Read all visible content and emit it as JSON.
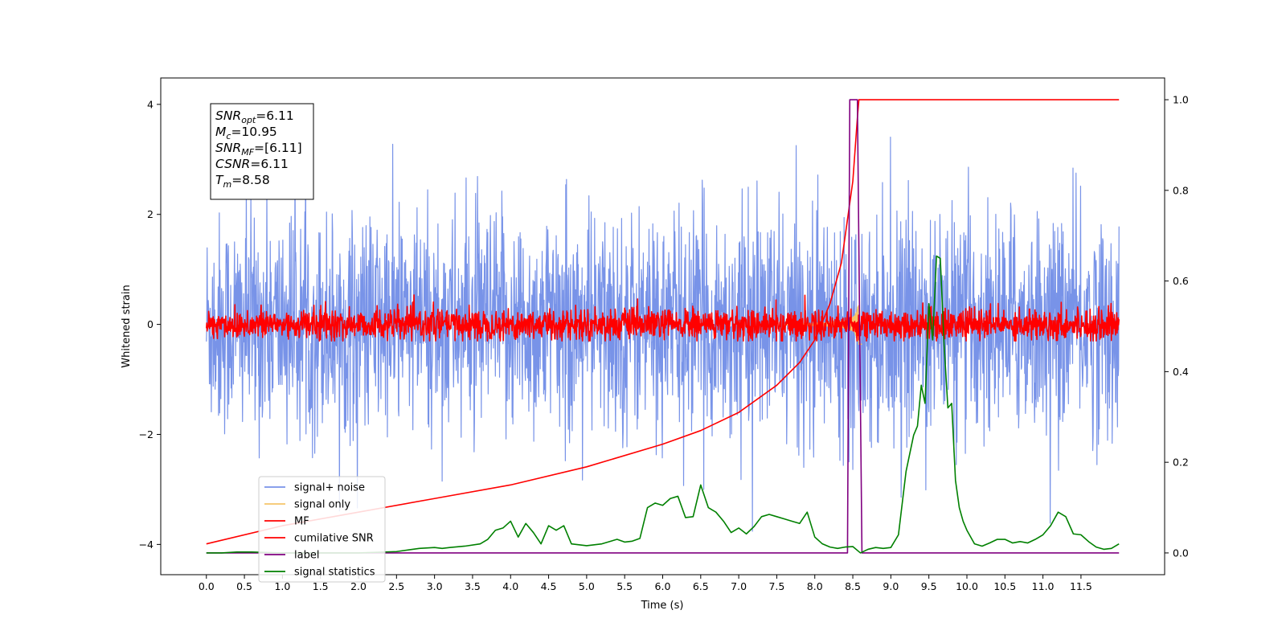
{
  "chart_data": {
    "type": "line",
    "title": "",
    "xlabel": "Time (s)",
    "ylabel": "Whitened strain",
    "xlim": [
      -0.6,
      12.6
    ],
    "ylim": [
      -4.55,
      4.48
    ],
    "y2lim": [
      -0.048,
      1.048
    ],
    "x_ticks": [
      0.0,
      0.5,
      1.0,
      1.5,
      2.0,
      2.5,
      3.0,
      3.5,
      4.0,
      4.5,
      5.0,
      5.5,
      6.0,
      6.5,
      7.0,
      7.5,
      8.0,
      8.5,
      9.0,
      9.5,
      10.0,
      10.5,
      11.0,
      11.5
    ],
    "x_tick_labels": [
      "0.0",
      "0.5",
      "1.0",
      "1.5",
      "2.0",
      "2.5",
      "3.0",
      "3.5",
      "4.0",
      "4.5",
      "5.0",
      "5.5",
      "6.0",
      "6.5",
      "7.0",
      "7.5",
      "8.0",
      "8.5",
      "9.0",
      "9.5",
      "10.0",
      "10.5",
      "11.0",
      "11.5"
    ],
    "y_ticks": [
      -4,
      -2,
      0,
      2,
      4
    ],
    "y_tick_labels": [
      "−4",
      "−2",
      "0",
      "2",
      "4"
    ],
    "y2_ticks": [
      0.0,
      0.2,
      0.4,
      0.6,
      0.8,
      1.0
    ],
    "y2_tick_labels": [
      "0.0",
      "0.2",
      "0.4",
      "0.6",
      "0.8",
      "1.0"
    ],
    "grid": false,
    "legend_position": "lower-left",
    "annotation": [
      {
        "base": "SNR",
        "sub": "opt",
        "value": "=6.11"
      },
      {
        "base": "M",
        "sub": "c",
        "value": "=10.95"
      },
      {
        "base": "SNR",
        "sub": "MF",
        "value": "=[6.11]"
      },
      {
        "base": "CSNR",
        "sub": "",
        "value": "=6.11"
      },
      {
        "base": "T",
        "sub": "m",
        "value": "=8.58"
      }
    ],
    "series": [
      {
        "name": "signal+ noise",
        "color": "#7893e8",
        "axis": "left",
        "style": "noise",
        "x_range": [
          0.0,
          12.0
        ],
        "sigma": 1.0,
        "clip": [
          -4.1,
          4.1
        ]
      },
      {
        "name": "signal only",
        "color": "#f5c56a",
        "axis": "left",
        "style": "chirp",
        "merger_time": 8.58,
        "amplitude": 0.55
      },
      {
        "name": "MF",
        "color": "#ff0000",
        "axis": "left",
        "style": "noise",
        "x_range": [
          0.0,
          12.0
        ],
        "sigma": 0.14,
        "clip": [
          -0.3,
          1.0
        ]
      },
      {
        "name": "cumilative SNR",
        "color": "#ff0000",
        "axis": "right",
        "x": [
          0.0,
          1.0,
          2.0,
          3.0,
          4.0,
          5.0,
          6.0,
          6.5,
          7.0,
          7.5,
          7.8,
          8.0,
          8.2,
          8.35,
          8.5,
          8.56,
          8.58,
          12.0
        ],
        "y": [
          0.02,
          0.06,
          0.09,
          0.12,
          0.15,
          0.19,
          0.24,
          0.27,
          0.31,
          0.37,
          0.42,
          0.47,
          0.55,
          0.64,
          0.82,
          0.96,
          1.0,
          1.0
        ]
      },
      {
        "name": "label",
        "color": "#800080",
        "axis": "right",
        "x": [
          0.0,
          8.43,
          8.46,
          8.56,
          8.62,
          12.0
        ],
        "y": [
          0.0,
          0.0,
          1.0,
          1.0,
          0.0,
          0.0
        ]
      },
      {
        "name": "signal statistics",
        "color": "#008000",
        "axis": "right",
        "x": [
          0.0,
          0.2,
          0.4,
          0.6,
          0.8,
          1.0,
          1.5,
          2.0,
          2.5,
          2.8,
          3.0,
          3.1,
          3.2,
          3.4,
          3.6,
          3.7,
          3.8,
          3.9,
          4.0,
          4.1,
          4.2,
          4.3,
          4.4,
          4.5,
          4.6,
          4.7,
          4.8,
          4.9,
          5.0,
          5.2,
          5.4,
          5.5,
          5.6,
          5.7,
          5.8,
          5.9,
          6.0,
          6.1,
          6.2,
          6.3,
          6.4,
          6.5,
          6.6,
          6.7,
          6.8,
          6.9,
          7.0,
          7.1,
          7.2,
          7.3,
          7.4,
          7.5,
          7.6,
          7.7,
          7.8,
          7.9,
          8.0,
          8.1,
          8.2,
          8.3,
          8.4,
          8.5,
          8.6,
          8.7,
          8.8,
          8.9,
          9.0,
          9.1,
          9.2,
          9.3,
          9.35,
          9.4,
          9.45,
          9.5,
          9.55,
          9.6,
          9.65,
          9.7,
          9.75,
          9.8,
          9.85,
          9.9,
          9.95,
          10.0,
          10.1,
          10.2,
          10.3,
          10.4,
          10.5,
          10.6,
          10.7,
          10.8,
          10.9,
          11.0,
          11.1,
          11.2,
          11.3,
          11.4,
          11.5,
          11.6,
          11.7,
          11.8,
          11.9,
          12.0
        ],
        "y": [
          0.0,
          0.0,
          0.002,
          0.002,
          0.001,
          0.0,
          0.0,
          0.0,
          0.003,
          0.01,
          0.012,
          0.01,
          0.012,
          0.015,
          0.02,
          0.03,
          0.05,
          0.055,
          0.07,
          0.035,
          0.065,
          0.045,
          0.02,
          0.06,
          0.05,
          0.06,
          0.02,
          0.018,
          0.016,
          0.02,
          0.03,
          0.024,
          0.026,
          0.032,
          0.1,
          0.11,
          0.105,
          0.12,
          0.125,
          0.078,
          0.08,
          0.15,
          0.1,
          0.09,
          0.07,
          0.045,
          0.055,
          0.042,
          0.058,
          0.08,
          0.085,
          0.08,
          0.075,
          0.07,
          0.065,
          0.09,
          0.035,
          0.02,
          0.013,
          0.01,
          0.013,
          0.014,
          0.0,
          0.008,
          0.012,
          0.01,
          0.012,
          0.04,
          0.18,
          0.26,
          0.28,
          0.37,
          0.33,
          0.55,
          0.47,
          0.655,
          0.65,
          0.46,
          0.32,
          0.33,
          0.16,
          0.1,
          0.07,
          0.05,
          0.02,
          0.015,
          0.022,
          0.03,
          0.03,
          0.022,
          0.025,
          0.022,
          0.03,
          0.04,
          0.06,
          0.09,
          0.08,
          0.042,
          0.04,
          0.025,
          0.013,
          0.008,
          0.01,
          0.02
        ]
      }
    ]
  }
}
